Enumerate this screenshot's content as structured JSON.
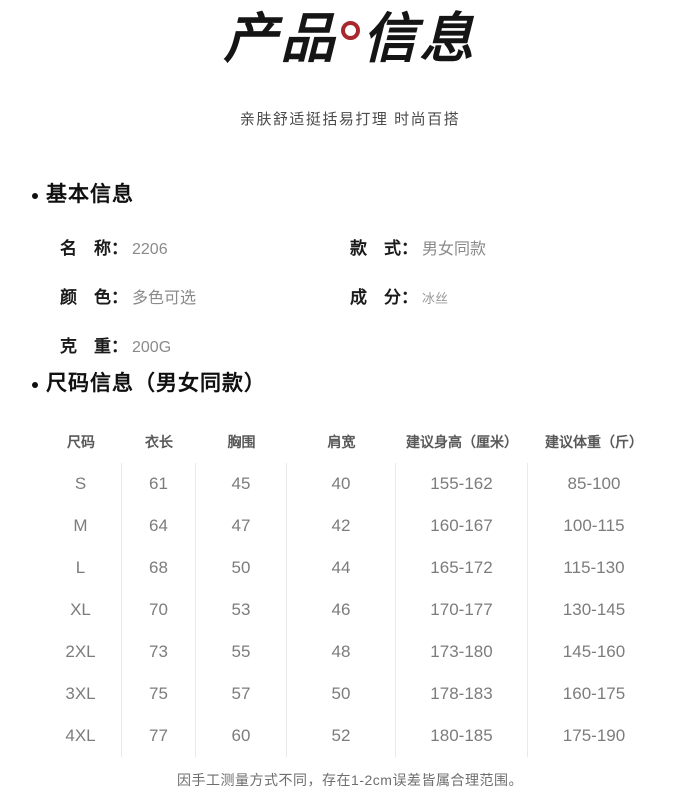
{
  "hero": {
    "title_left": "产品",
    "title_right": "信息",
    "subtitle": "亲肤舒适挺括易打理 时尚百搭"
  },
  "colors": {
    "accent_red": "#a9282d",
    "separator": "#e9e9e9"
  },
  "icons": {
    "title_accent": "degree-ring",
    "section_bullet": "dot"
  },
  "basic_info": {
    "heading": "基本信息",
    "fields": [
      {
        "label": "名　称：",
        "value": "2206"
      },
      {
        "label": "款　式：",
        "value": "男女同款"
      },
      {
        "label": "颜　色：",
        "value": "多色可选"
      },
      {
        "label": "成　分：",
        "value": "冰丝"
      },
      {
        "label": "克　重：",
        "value": "200G"
      }
    ]
  },
  "size_table": {
    "heading": "尺码信息（男女同款）",
    "columns": [
      "尺码",
      "衣长",
      "胸围",
      "肩宽",
      "建议身高（厘米）",
      "建议体重（斤）"
    ],
    "rows": [
      [
        "S",
        "61",
        "45",
        "40",
        "155-162",
        "85-100"
      ],
      [
        "M",
        "64",
        "47",
        "42",
        "160-167",
        "100-115"
      ],
      [
        "L",
        "68",
        "50",
        "44",
        "165-172",
        "115-130"
      ],
      [
        "XL",
        "70",
        "53",
        "46",
        "170-177",
        "130-145"
      ],
      [
        "2XL",
        "73",
        "55",
        "48",
        "173-180",
        "145-160"
      ],
      [
        "3XL",
        "75",
        "57",
        "50",
        "178-183",
        "160-175"
      ],
      [
        "4XL",
        "77",
        "60",
        "52",
        "180-185",
        "175-190"
      ]
    ]
  },
  "footer": {
    "note": "因手工测量方式不同，存在1-2cm误差皆属合理范围。"
  }
}
